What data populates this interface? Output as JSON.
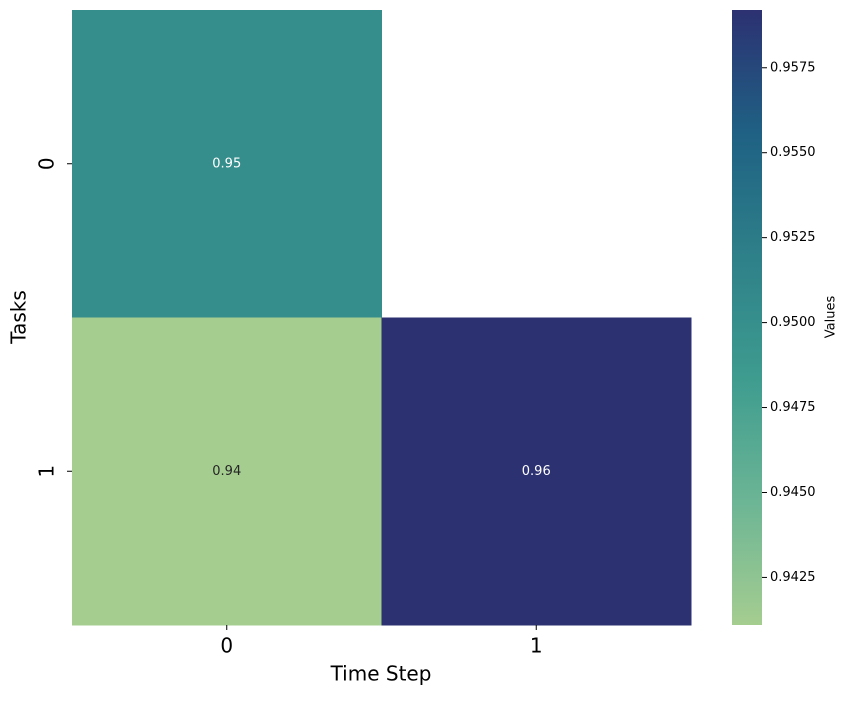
{
  "chart_data": {
    "type": "heatmap",
    "x_label": "Time Step",
    "y_label": "Tasks",
    "x_categories": [
      "0",
      "1"
    ],
    "y_categories": [
      "0",
      "1"
    ],
    "values": [
      [
        0.9502,
        null
      ],
      [
        0.9411,
        0.9592
      ]
    ],
    "value_labels": [
      [
        "0.95",
        null
      ],
      [
        "0.94",
        "0.96"
      ]
    ],
    "colormap": [
      "#a5cd90",
      "#6cb595",
      "#3e9c8f",
      "#2e8089",
      "#1f6184",
      "#2c3172"
    ],
    "colorbar_label": "Values",
    "clim": [
      0.9411,
      0.9592
    ],
    "cticks": [
      0.9425,
      {
        "value": 0.945,
        "label": "0.9450"
      },
      0.9475,
      {
        "value": 0.95,
        "label": "0.9500"
      },
      0.9525,
      {
        "value": 0.955,
        "label": "0.9550"
      },
      0.9575
    ]
  }
}
